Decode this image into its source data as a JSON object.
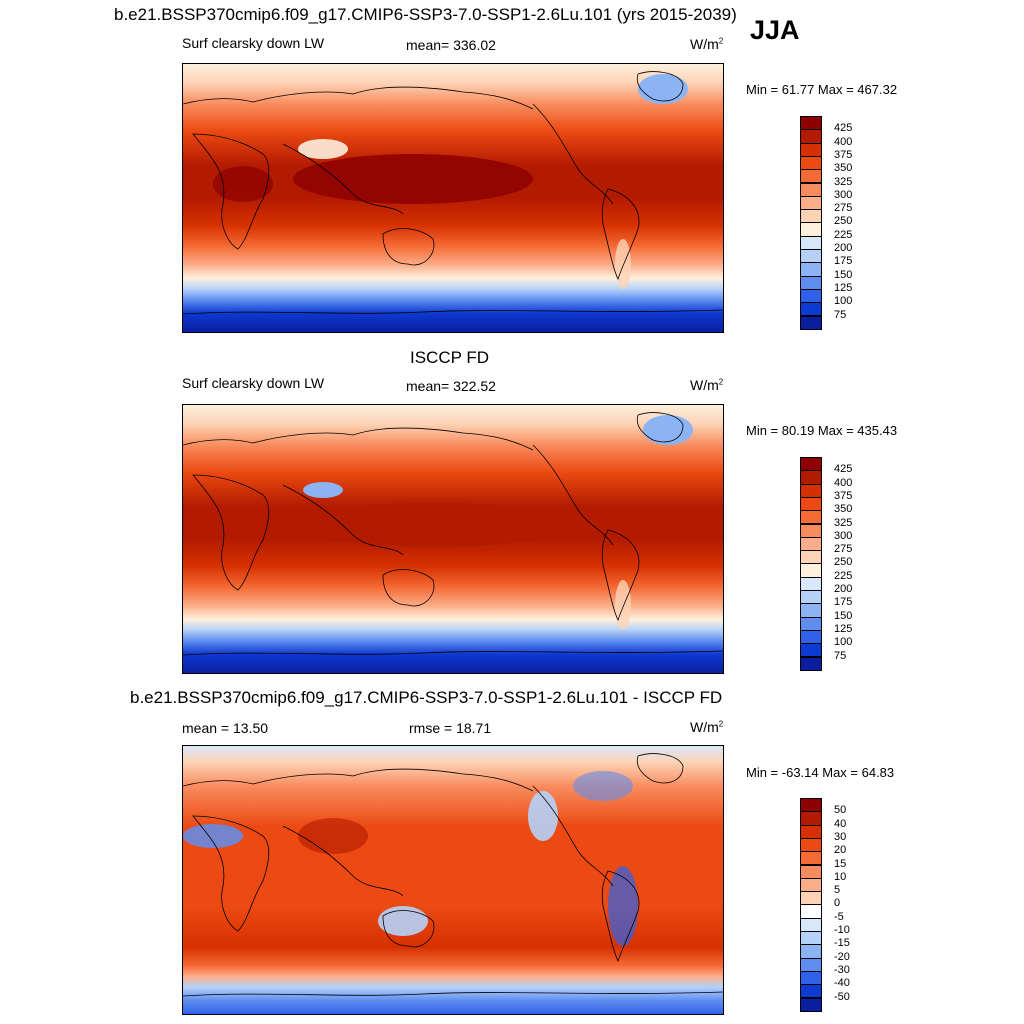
{
  "header": {
    "title": "b.e21.BSSP370cmip6.f09_g17.CMIP6-SSP3-7.0-SSP1-2.6Lu.101 (yrs 2015-2039)",
    "season": "JJA"
  },
  "panels": [
    {
      "title": "",
      "left": "Surf clearsky down LW",
      "center": "mean= 336.02",
      "units": "W/m",
      "units_sup": "2",
      "minmax": "Min =  61.77 Max = 467.32",
      "kind": "abs",
      "colorbar": {
        "labels": [
          "425",
          "400",
          "375",
          "350",
          "325",
          "300",
          "275",
          "250",
          "225",
          "200",
          "175",
          "150",
          "125",
          "100",
          "75"
        ],
        "colors": [
          "#8e0000",
          "#b31b00",
          "#d63000",
          "#ec4a12",
          "#f56a35",
          "#f98c5e",
          "#fcae8a",
          "#fdd3b6",
          "#fdf0dd",
          "#d8e8fb",
          "#b5d1f8",
          "#8cb4f4",
          "#5f8ef0",
          "#2f62e8",
          "#0d3ad0",
          "#0a1fa0"
        ]
      }
    },
    {
      "title": "ISCCP FD",
      "left": "Surf clearsky down LW",
      "center": "mean= 322.52",
      "units": "W/m",
      "units_sup": "2",
      "minmax": "Min =  80.19 Max = 435.43",
      "kind": "abs",
      "colorbar": {
        "labels": [
          "425",
          "400",
          "375",
          "350",
          "325",
          "300",
          "275",
          "250",
          "225",
          "200",
          "175",
          "150",
          "125",
          "100",
          "75"
        ],
        "colors": [
          "#8e0000",
          "#b31b00",
          "#d63000",
          "#ec4a12",
          "#f56a35",
          "#f98c5e",
          "#fcae8a",
          "#fdd3b6",
          "#fdf0dd",
          "#d8e8fb",
          "#b5d1f8",
          "#8cb4f4",
          "#5f8ef0",
          "#2f62e8",
          "#0d3ad0",
          "#0a1fa0"
        ]
      }
    },
    {
      "title": "b.e21.BSSP370cmip6.f09_g17.CMIP6-SSP3-7.0-SSP1-2.6Lu.101 - ISCCP FD",
      "left": "mean =  13.50",
      "center": "rmse =  18.71",
      "units": "W/m",
      "units_sup": "2",
      "minmax": "Min = -63.14 Max =  64.83",
      "kind": "diff",
      "colorbar": {
        "labels": [
          "50",
          "40",
          "30",
          "20",
          "15",
          "10",
          "5",
          "0",
          "-5",
          "-10",
          "-15",
          "-20",
          "-30",
          "-40",
          "-50"
        ],
        "colors": [
          "#8e0000",
          "#b31b00",
          "#d63000",
          "#ec4a12",
          "#f56a35",
          "#f98c5e",
          "#fcae8a",
          "#fdd3b6",
          "#ffffff",
          "#d8e8fb",
          "#b5d1f8",
          "#8cb4f4",
          "#5f8ef0",
          "#2f62e8",
          "#0d3ad0",
          "#0a1fa0"
        ]
      }
    }
  ]
}
